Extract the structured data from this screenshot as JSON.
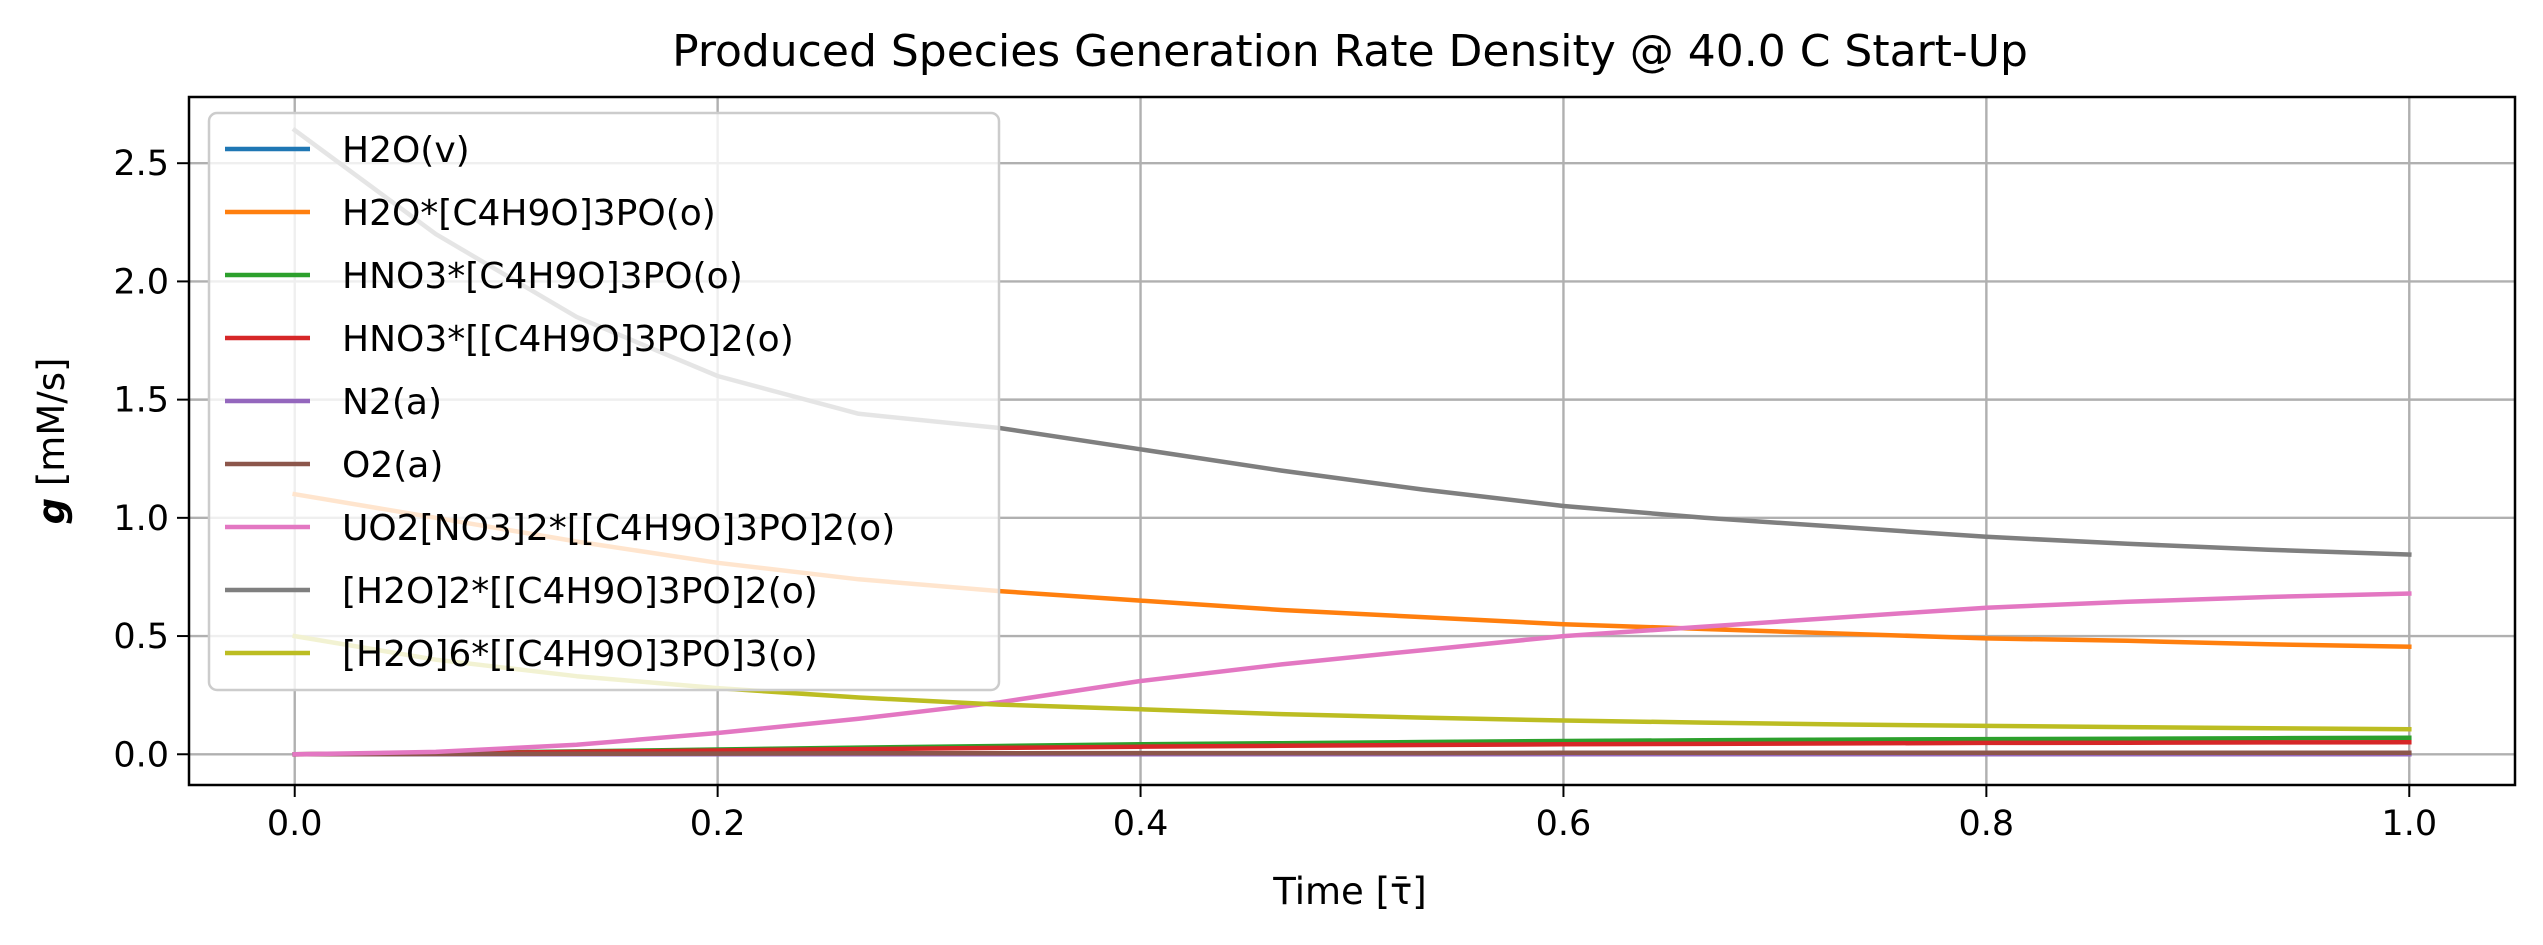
{
  "chart_data": {
    "type": "line",
    "title": "Produced Species Generation Rate Density @ 40.0 C Start-Up",
    "xlabel": "Time [τ̄]",
    "ylabel_symbol": "g",
    "ylabel_unit": " [mM/s]",
    "xlim": [
      -0.05,
      1.05
    ],
    "ylim": [
      -0.13,
      2.78
    ],
    "xticks": [
      0.0,
      0.2,
      0.4,
      0.6,
      0.8,
      1.0
    ],
    "xtick_labels": [
      "0.0",
      "0.2",
      "0.4",
      "0.6",
      "0.8",
      "1.0"
    ],
    "yticks": [
      0.0,
      0.5,
      1.0,
      1.5,
      2.0,
      2.5
    ],
    "ytick_labels": [
      "0.0",
      "0.5",
      "1.0",
      "1.5",
      "2.0",
      "2.5"
    ],
    "grid": true,
    "legend_position": "upper-left",
    "x": [
      0.0,
      0.0667,
      0.1333,
      0.2,
      0.2667,
      0.3333,
      0.4,
      0.4667,
      0.5333,
      0.6,
      0.6667,
      0.7333,
      0.8,
      0.8667,
      0.9333,
      1.0
    ],
    "series": [
      {
        "name": "H2O(v)",
        "color": "#1f77b4",
        "values": [
          0.0,
          0.0,
          0.0,
          0.0,
          0.0,
          0.0,
          0.0,
          0.0,
          0.0,
          0.0,
          0.0,
          0.0,
          0.0,
          0.0,
          0.0,
          0.0
        ]
      },
      {
        "name": "H2O*[C4H9O]3PO(o)",
        "color": "#ff7f0e",
        "values": [
          1.1,
          1.0,
          0.9,
          0.81,
          0.74,
          0.69,
          0.65,
          0.61,
          0.58,
          0.55,
          0.53,
          0.51,
          0.49,
          0.48,
          0.465,
          0.455
        ]
      },
      {
        "name": "HNO3*[C4H9O]3PO(o)",
        "color": "#2ca02c",
        "values": [
          0.0,
          0.005,
          0.012,
          0.02,
          0.028,
          0.035,
          0.042,
          0.047,
          0.052,
          0.056,
          0.059,
          0.062,
          0.064,
          0.066,
          0.068,
          0.07
        ]
      },
      {
        "name": "HNO3*[[C4H9O]3PO]2(o)",
        "color": "#d62728",
        "values": [
          0.0,
          0.004,
          0.01,
          0.016,
          0.022,
          0.027,
          0.032,
          0.036,
          0.039,
          0.042,
          0.044,
          0.046,
          0.048,
          0.049,
          0.05,
          0.051
        ]
      },
      {
        "name": "N2(a)",
        "color": "#9467bd",
        "values": [
          0.0,
          0.0,
          0.0,
          0.0,
          0.0,
          0.0,
          0.0,
          0.0,
          0.0,
          0.0,
          0.0,
          0.0,
          0.0,
          0.0,
          0.0,
          0.0
        ]
      },
      {
        "name": "O2(a)",
        "color": "#8c564b",
        "values": [
          0.0,
          0.001,
          0.002,
          0.003,
          0.004,
          0.004,
          0.005,
          0.005,
          0.005,
          0.006,
          0.006,
          0.006,
          0.006,
          0.006,
          0.006,
          0.006
        ]
      },
      {
        "name": "UO2[NO3]2*[[C4H9O]3PO]2(o)",
        "color": "#e377c2",
        "values": [
          0.0,
          0.01,
          0.04,
          0.09,
          0.15,
          0.22,
          0.31,
          0.38,
          0.44,
          0.5,
          0.54,
          0.58,
          0.62,
          0.645,
          0.665,
          0.68
        ]
      },
      {
        "name": "[H2O]2*[[C4H9O]3PO]2(o)",
        "color": "#7f7f7f",
        "values": [
          2.64,
          2.2,
          1.85,
          1.6,
          1.44,
          1.38,
          1.29,
          1.2,
          1.12,
          1.05,
          1.0,
          0.96,
          0.92,
          0.89,
          0.865,
          0.845
        ]
      },
      {
        "name": "[H2O]6*[[C4H9O]3PO]3(o)",
        "color": "#bcbd22",
        "values": [
          0.5,
          0.4,
          0.33,
          0.28,
          0.24,
          0.21,
          0.19,
          0.17,
          0.155,
          0.143,
          0.134,
          0.126,
          0.12,
          0.115,
          0.11,
          0.106
        ]
      }
    ]
  }
}
